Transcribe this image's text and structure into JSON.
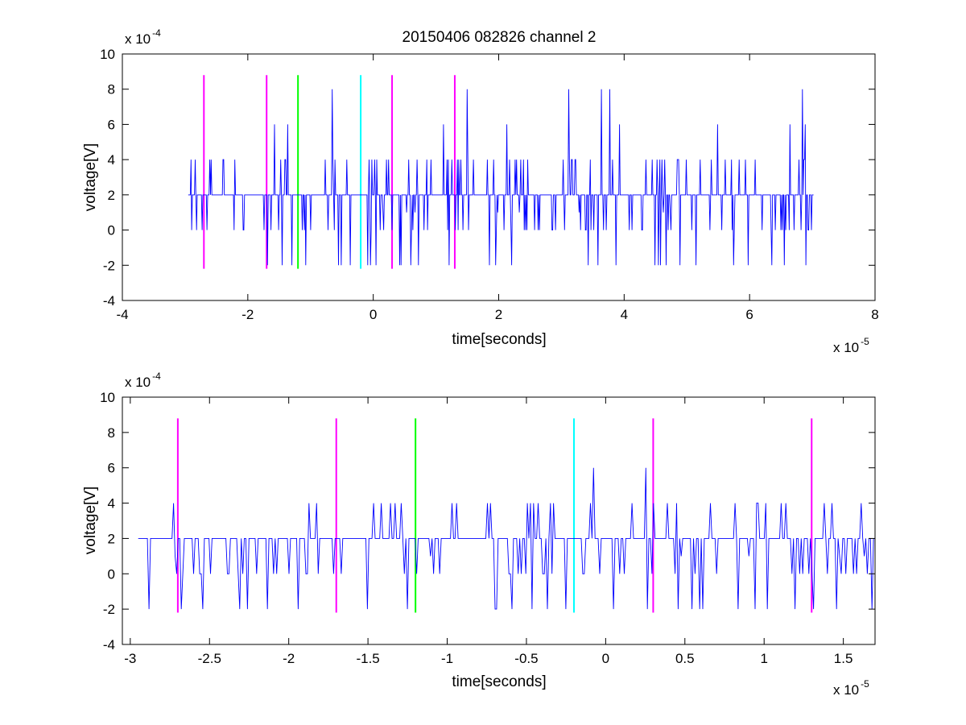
{
  "title": "20150406 082826 channel 2",
  "chart_data": [
    {
      "type": "line",
      "title": "20150406 082826 channel 2",
      "xlabel": "time[seconds]",
      "ylabel": "voltage[V]",
      "x_scale_label": "x 10",
      "x_scale_exp": "-5",
      "y_scale_label": "x 10",
      "y_scale_exp": "-4",
      "xlim": [
        -4,
        8
      ],
      "ylim": [
        -4,
        10
      ],
      "xticks": [
        -4,
        -2,
        0,
        2,
        4,
        6,
        8
      ],
      "xtick_labels": [
        "-4",
        "-2",
        "0",
        "2",
        "4",
        "6",
        "8"
      ],
      "yticks": [
        -4,
        -2,
        0,
        2,
        4,
        6,
        8,
        10
      ],
      "ytick_labels": [
        "-4",
        "-2",
        "0",
        "2",
        "4",
        "6",
        "8",
        "10"
      ],
      "grid": false,
      "signal": {
        "color": "#0000ff",
        "x_start": -2.95,
        "x_end": 7.02,
        "baseline": 2,
        "values_sample": [
          2,
          1,
          0,
          2,
          2,
          4,
          2,
          -2,
          2,
          4,
          2,
          0,
          2,
          6,
          2,
          0,
          2,
          4,
          2,
          -2,
          2,
          0,
          2,
          4,
          2,
          2,
          0,
          2,
          -2,
          2,
          4,
          2,
          0,
          2,
          2,
          4,
          2,
          0,
          2,
          -2,
          2,
          4,
          2,
          2,
          0,
          2,
          4,
          2,
          -2,
          2,
          2,
          0,
          4,
          2,
          2,
          0,
          2,
          4,
          2,
          6,
          2,
          8,
          2,
          0,
          2,
          4,
          2,
          -2,
          2,
          2,
          4,
          2,
          0,
          2,
          4,
          2
        ]
      },
      "markers": [
        {
          "x": -2.7,
          "color": "#ff00ff"
        },
        {
          "x": -1.7,
          "color": "#ff00ff"
        },
        {
          "x": -1.2,
          "color": "#00ff00"
        },
        {
          "x": -0.2,
          "color": "#00ffff"
        },
        {
          "x": 0.3,
          "color": "#ff00ff"
        },
        {
          "x": 1.3,
          "color": "#ff00ff"
        }
      ],
      "marker_range": [
        -2.2,
        8.8
      ]
    },
    {
      "type": "line",
      "title": "",
      "xlabel": "time[seconds]",
      "ylabel": "voltage[V]",
      "x_scale_label": "x 10",
      "x_scale_exp": "-5",
      "y_scale_label": "x 10",
      "y_scale_exp": "-4",
      "xlim": [
        -3.05,
        1.7
      ],
      "ylim": [
        -4,
        10
      ],
      "xticks": [
        -3,
        -2.5,
        -2,
        -1.5,
        -1,
        -0.5,
        0,
        0.5,
        1,
        1.5
      ],
      "xtick_labels": [
        "-3",
        "-2.5",
        "-2",
        "-1.5",
        "-1",
        "-0.5",
        "0",
        "0.5",
        "1",
        "1.5"
      ],
      "yticks": [
        -4,
        -2,
        0,
        2,
        4,
        6,
        8,
        10
      ],
      "ytick_labels": [
        "-4",
        "-2",
        "0",
        "2",
        "4",
        "6",
        "8",
        "10"
      ],
      "grid": false,
      "signal": {
        "color": "#0000ff",
        "x_start": -2.95,
        "x_end": 1.7,
        "baseline": 2,
        "values_sample": [
          2,
          0,
          2,
          1,
          0,
          2,
          4,
          2,
          -2,
          2,
          4,
          2,
          0,
          2,
          -2,
          4,
          2,
          0,
          2,
          6,
          2,
          0,
          2,
          -2,
          2,
          4,
          2,
          0,
          2,
          2,
          4,
          2,
          -2,
          2,
          0,
          4,
          2,
          2,
          0,
          2,
          -2,
          2,
          4,
          2,
          0,
          2,
          4,
          2,
          -2,
          2,
          0,
          2,
          4,
          2,
          -2,
          2,
          4,
          2,
          0,
          2,
          -2,
          2
        ]
      },
      "markers": [
        {
          "x": -2.7,
          "color": "#ff00ff"
        },
        {
          "x": -1.7,
          "color": "#ff00ff"
        },
        {
          "x": -1.2,
          "color": "#00ff00"
        },
        {
          "x": -0.2,
          "color": "#00ffff"
        },
        {
          "x": 0.3,
          "color": "#ff00ff"
        },
        {
          "x": 1.3,
          "color": "#ff00ff"
        }
      ],
      "marker_range": [
        -2.2,
        8.8
      ]
    }
  ]
}
